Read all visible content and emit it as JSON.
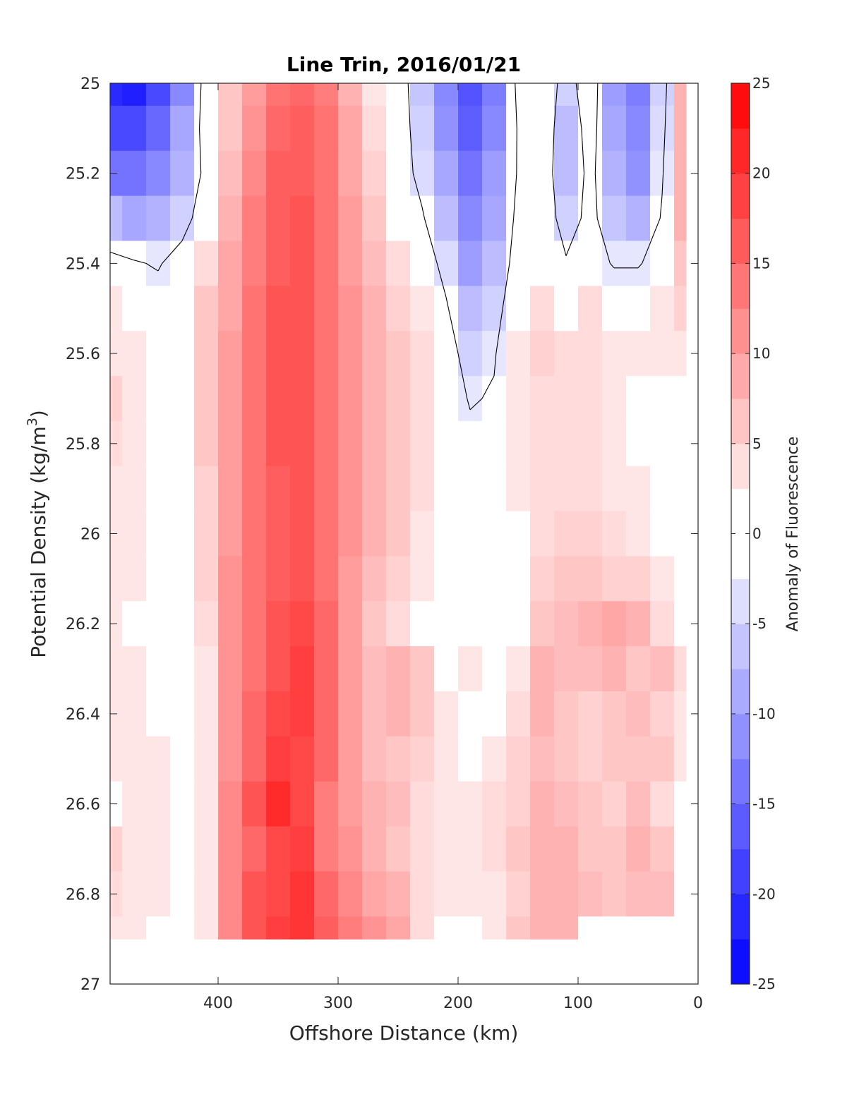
{
  "chart_data": {
    "type": "heatmap",
    "title": "Line Trin, 2016/01/21",
    "xlabel": "Offshore Distance (km)",
    "ylabel_main": "Potential Density (kg/m",
    "ylabel_sup": "3",
    "ylabel_end": ")",
    "colorbar_label": "Anomaly of Fluorescence",
    "xlim": [
      490,
      0
    ],
    "ylim": [
      25,
      27
    ],
    "x_reversed": true,
    "y_reversed": true,
    "x_ticks": [
      400,
      300,
      200,
      100,
      0
    ],
    "x_tick_labels": [
      "400",
      "300",
      "200",
      "100",
      "0"
    ],
    "y_ticks": [
      25,
      25.2,
      25.4,
      25.6,
      25.8,
      26,
      26.2,
      26.4,
      26.6,
      26.8,
      27
    ],
    "y_tick_labels": [
      "25",
      "25.2",
      "25.4",
      "25.6",
      "25.8",
      "26",
      "26.2",
      "26.4",
      "26.6",
      "26.8",
      "27"
    ],
    "colorbar_ticks": [
      25,
      20,
      15,
      10,
      5,
      0,
      -5,
      -10,
      -15,
      -20,
      -25
    ],
    "colorbar_tick_labels": [
      "25",
      "20",
      "15",
      "10",
      "5",
      "0",
      "-5",
      "-10",
      "-15",
      "-20",
      "-25"
    ],
    "clim": [
      -25,
      25
    ],
    "levels": [
      -25,
      -22.5,
      -20,
      -17.5,
      -15,
      -12.5,
      -10,
      -7.5,
      -5,
      -2.5,
      2.5,
      5,
      7.5,
      10,
      12.5,
      15,
      17.5,
      20,
      22.5,
      25
    ],
    "colors": {
      "negative_max": "#0000ff",
      "positive_max": "#ff0000",
      "neutral": "#ffffff",
      "contour": "#000000"
    },
    "data_extent": {
      "x": [
        490,
        10
      ],
      "y": [
        25,
        26.9
      ]
    },
    "x_grid": [
      490,
      470,
      450,
      430,
      410,
      390,
      370,
      350,
      330,
      310,
      290,
      270,
      250,
      230,
      210,
      190,
      170,
      150,
      130,
      110,
      90,
      70,
      50,
      30,
      10
    ],
    "y_grid": [
      25,
      25.1,
      25.2,
      25.3,
      25.4,
      25.5,
      25.6,
      25.7,
      25.8,
      25.9,
      26,
      26.1,
      26.2,
      26.3,
      26.4,
      26.5,
      26.6,
      26.7,
      26.8,
      26.9
    ],
    "values": [
      [
        -21,
        -22,
        -18,
        -12,
        0,
        6,
        10,
        14,
        15,
        13,
        8,
        3,
        0,
        -6,
        -12,
        -17,
        -13,
        -1,
        2,
        -5,
        1,
        -10,
        -13,
        -5,
        8
      ],
      [
        -18,
        -18,
        -15,
        -9,
        0,
        6,
        11,
        15,
        16,
        14,
        9,
        4,
        0,
        -5,
        -11,
        -16,
        -12,
        -2,
        2,
        -7,
        0,
        -9,
        -12,
        -4,
        8
      ],
      [
        -14,
        -14,
        -12,
        -8,
        -1,
        7,
        12,
        16,
        16,
        14,
        9,
        5,
        0,
        -4,
        -9,
        -14,
        -10,
        -2,
        1,
        -7,
        -1,
        -8,
        -11,
        -3,
        8
      ],
      [
        -7,
        -9,
        -8,
        -5,
        1,
        8,
        13,
        16,
        17,
        14,
        10,
        6,
        2,
        -2,
        -7,
        -12,
        -9,
        -1,
        1,
        -5,
        -1,
        -6,
        -8,
        -2,
        8
      ],
      [
        -1,
        -2,
        -3,
        0,
        4,
        9,
        13,
        16,
        17,
        14,
        10,
        7,
        4,
        0,
        -4,
        -10,
        -7,
        0,
        2,
        -2,
        0,
        -3,
        -3,
        0,
        6
      ],
      [
        3,
        1,
        0,
        2,
        6,
        9,
        14,
        17,
        17,
        14,
        11,
        8,
        5,
        3,
        -2,
        -7,
        -5,
        2,
        4,
        2,
        4,
        2,
        2,
        3,
        5
      ],
      [
        3,
        3,
        2,
        2,
        6,
        10,
        14,
        17,
        17,
        14,
        11,
        8,
        6,
        4,
        0,
        -5,
        -3,
        3,
        5,
        4,
        4,
        3,
        3,
        3,
        3
      ],
      [
        5,
        3,
        2,
        2,
        6,
        10,
        14,
        17,
        17,
        14,
        11,
        8,
        6,
        4,
        1,
        -3,
        -2,
        3,
        4,
        4,
        4,
        3,
        2,
        2,
        2
      ],
      [
        4,
        3,
        2,
        1,
        6,
        10,
        14,
        17,
        17,
        14,
        11,
        8,
        6,
        4,
        2,
        -1,
        0,
        3,
        4,
        4,
        4,
        3,
        2,
        1,
        1
      ],
      [
        3,
        3,
        2,
        1,
        5,
        10,
        14,
        16,
        17,
        14,
        11,
        8,
        6,
        4,
        2,
        1,
        0,
        3,
        4,
        4,
        4,
        3,
        3,
        1,
        1
      ],
      [
        3,
        3,
        2,
        1,
        5,
        10,
        14,
        16,
        17,
        14,
        11,
        8,
        6,
        3,
        2,
        1,
        1,
        2,
        4,
        5,
        5,
        4,
        3,
        2,
        1
      ],
      [
        3,
        3,
        2,
        1,
        5,
        11,
        14,
        16,
        17,
        14,
        10,
        7,
        5,
        3,
        1,
        1,
        1,
        2,
        5,
        6,
        6,
        5,
        5,
        3,
        1
      ],
      [
        3,
        1,
        2,
        1,
        4,
        11,
        14,
        17,
        18,
        15,
        10,
        6,
        4,
        2,
        1,
        1,
        1,
        2,
        6,
        7,
        8,
        9,
        8,
        4,
        1
      ],
      [
        3,
        3,
        2,
        1,
        3,
        11,
        14,
        17,
        19,
        15,
        10,
        7,
        8,
        6,
        2,
        3,
        2,
        3,
        8,
        7,
        7,
        8,
        6,
        7,
        4
      ],
      [
        3,
        3,
        2,
        1,
        3,
        11,
        15,
        18,
        19,
        15,
        10,
        7,
        8,
        6,
        3,
        2,
        1,
        4,
        8,
        6,
        5,
        6,
        7,
        5,
        3
      ],
      [
        3,
        3,
        3,
        1,
        3,
        11,
        15,
        19,
        18,
        15,
        10,
        7,
        6,
        5,
        3,
        2,
        3,
        5,
        7,
        6,
        5,
        6,
        6,
        6,
        3
      ],
      [
        2,
        3,
        3,
        2,
        3,
        12,
        17,
        21,
        18,
        13,
        10,
        8,
        7,
        4,
        3,
        3,
        4,
        5,
        8,
        7,
        6,
        5,
        7,
        4,
        1
      ],
      [
        5,
        3,
        3,
        1,
        3,
        12,
        15,
        18,
        19,
        13,
        11,
        8,
        6,
        4,
        3,
        3,
        4,
        6,
        8,
        8,
        6,
        6,
        8,
        6,
        1
      ],
      [
        4,
        3,
        3,
        2,
        3,
        12,
        17,
        18,
        20,
        15,
        12,
        9,
        8,
        4,
        3,
        3,
        3,
        5,
        8,
        8,
        7,
        6,
        7,
        7,
        1
      ],
      [
        3,
        3,
        1,
        2,
        3,
        12,
        17,
        19,
        20,
        16,
        13,
        11,
        9,
        4,
        2,
        1,
        3,
        6,
        8,
        8,
        0,
        0,
        0,
        0,
        0
      ]
    ]
  }
}
